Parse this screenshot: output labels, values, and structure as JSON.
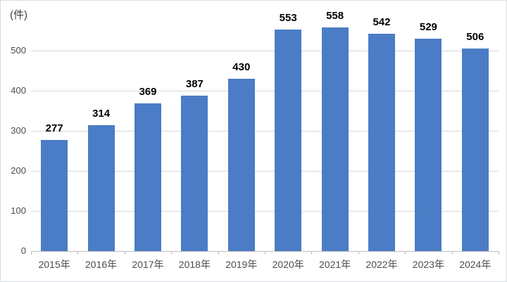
{
  "chart_data": {
    "type": "bar",
    "title": "",
    "ylabel": "(件)",
    "xlabel": "",
    "categories": [
      "2015年",
      "2016年",
      "2017年",
      "2018年",
      "2019年",
      "2020年",
      "2021年",
      "2022年",
      "2023年",
      "2024年"
    ],
    "values": [
      277,
      314,
      369,
      387,
      430,
      553,
      558,
      542,
      529,
      506
    ],
    "yticks": [
      0,
      100,
      200,
      300,
      400,
      500
    ],
    "ylim": [
      0,
      583
    ],
    "grid": true,
    "legend": "none",
    "data_labels": true,
    "bar_color": "#4b7cc6",
    "gridline_color": "#d9d9d9",
    "axis_line_color": "#bfbfbf",
    "tick_label_color": "#4d4d4d",
    "data_label_color": "#000000"
  }
}
